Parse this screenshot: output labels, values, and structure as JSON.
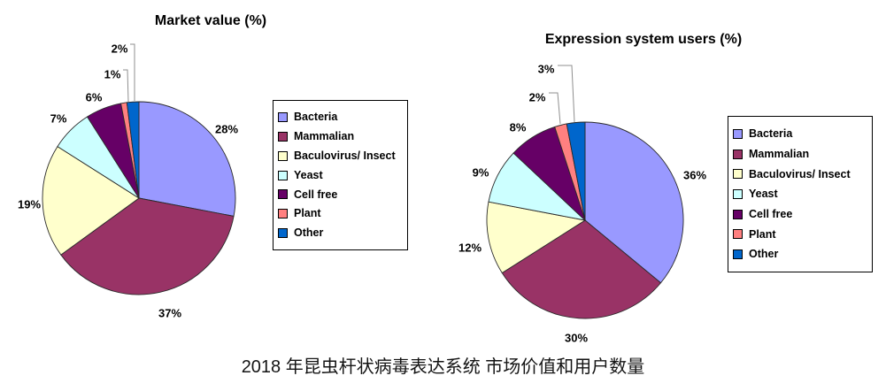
{
  "page": {
    "caption": "2018 年昆虫杆状病毒表达系统 市场价值和用户数量"
  },
  "chart_data": [
    {
      "type": "pie",
      "title": "Market value (%)",
      "categories": [
        "Bacteria",
        "Mammalian",
        "Baculovirus/ Insect",
        "Yeast",
        "Cell free",
        "Plant",
        "Other"
      ],
      "values": [
        28,
        37,
        19,
        7,
        6,
        1,
        2
      ],
      "pct_labels": [
        "28%",
        "37%",
        "19%",
        "7%",
        "6%",
        "1%",
        "2%"
      ],
      "colors": [
        "#9999FF",
        "#993366",
        "#FFFFCC",
        "#CCFFFF",
        "#660066",
        "#FF8080",
        "#0066CC"
      ],
      "start_angle_deg": 0,
      "direction": "clockwise",
      "legend_position": "right",
      "legend_entries": [
        "Bacteria",
        "Mammalian",
        "Baculovirus/ Insect",
        "Yeast",
        "Cell free",
        "Plant",
        "Other"
      ]
    },
    {
      "type": "pie",
      "title": "Expression system users (%)",
      "categories": [
        "Bacteria",
        "Mammalian",
        "Baculovirus/ Insect",
        "Yeast",
        "Cell free",
        "Plant",
        "Other"
      ],
      "values": [
        36,
        30,
        12,
        9,
        8,
        2,
        3
      ],
      "pct_labels": [
        "36%",
        "30%",
        "12%",
        "9%",
        "8%",
        "2%",
        "3%"
      ],
      "colors": [
        "#9999FF",
        "#993366",
        "#FFFFCC",
        "#CCFFFF",
        "#660066",
        "#FF8080",
        "#0066CC"
      ],
      "start_angle_deg": 0,
      "direction": "clockwise",
      "legend_position": "right",
      "legend_entries": [
        "Bacteria",
        "Mammalian",
        "Baculovirus/ Insect",
        "Yeast",
        "Cell free",
        "Plant",
        "Other"
      ]
    }
  ]
}
